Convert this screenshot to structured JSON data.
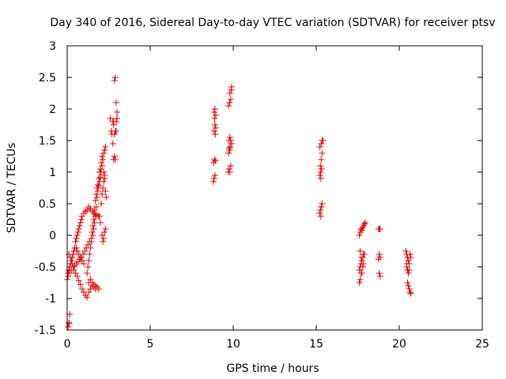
{
  "chart_data": {
    "type": "scatter",
    "title": "Day 340 of 2016, Sidereal Day-to-day VTEC variation (SDTVAR) for receiver ptsv",
    "xlabel": "GPS time / hours",
    "ylabel": "SDTVAR / TECUs",
    "xlim": [
      0,
      25
    ],
    "ylim": [
      -1.5,
      3
    ],
    "xticks": [
      0,
      5,
      10,
      15,
      20,
      25
    ],
    "xtick_labels": [
      "0",
      "5",
      "10",
      "15",
      "20",
      "25"
    ],
    "yticks": [
      -1.5,
      -1,
      -0.5,
      0,
      0.5,
      1,
      1.5,
      2,
      2.5,
      3
    ],
    "ytick_labels": [
      "-1.5",
      "-1",
      "-0.5",
      "0",
      "0.5",
      "1",
      "1.5",
      "2",
      "2.5",
      "3"
    ],
    "marker": "+",
    "marker_color": "#e00000",
    "grid": false,
    "legend": false,
    "series": [
      {
        "name": "SDTVAR",
        "points": [
          [
            0.05,
            -1.45
          ],
          [
            0.1,
            -1.38
          ],
          [
            0.15,
            -1.25
          ],
          [
            0.12,
            -1.4
          ],
          [
            0.0,
            -0.7
          ],
          [
            0.05,
            -0.6
          ],
          [
            0.1,
            -0.55
          ],
          [
            0.15,
            -0.5
          ],
          [
            0.2,
            -0.45
          ],
          [
            0.25,
            -0.4
          ],
          [
            0.3,
            -0.35
          ],
          [
            0.35,
            -0.3
          ],
          [
            0.4,
            -0.25
          ],
          [
            0.45,
            -0.2
          ],
          [
            0.5,
            -0.1
          ],
          [
            0.55,
            -0.05
          ],
          [
            0.6,
            0.0
          ],
          [
            0.65,
            0.05
          ],
          [
            0.7,
            0.1
          ],
          [
            0.75,
            0.15
          ],
          [
            0.8,
            0.2
          ],
          [
            0.85,
            0.25
          ],
          [
            0.9,
            0.3
          ],
          [
            1.0,
            0.35
          ],
          [
            1.1,
            0.38
          ],
          [
            1.2,
            0.4
          ],
          [
            1.3,
            0.45
          ],
          [
            1.4,
            0.42
          ],
          [
            1.5,
            0.38
          ],
          [
            1.6,
            0.35
          ],
          [
            1.7,
            0.33
          ],
          [
            1.8,
            0.32
          ],
          [
            1.9,
            0.3
          ],
          [
            0.1,
            -0.3
          ],
          [
            0.2,
            -0.35
          ],
          [
            0.3,
            -0.45
          ],
          [
            0.4,
            -0.55
          ],
          [
            0.5,
            -0.6
          ],
          [
            0.6,
            -0.65
          ],
          [
            0.7,
            -0.72
          ],
          [
            0.8,
            -0.78
          ],
          [
            0.9,
            -0.85
          ],
          [
            1.0,
            -0.9
          ],
          [
            1.1,
            -0.95
          ],
          [
            1.2,
            -0.98
          ],
          [
            1.3,
            -0.9
          ],
          [
            1.4,
            -0.85
          ],
          [
            1.5,
            -0.8
          ],
          [
            1.6,
            -0.82
          ],
          [
            1.7,
            -0.85
          ],
          [
            0.05,
            -0.65
          ],
          [
            0.15,
            -0.6
          ],
          [
            0.25,
            -0.55
          ],
          [
            0.35,
            -0.5
          ],
          [
            0.45,
            -0.48
          ],
          [
            0.55,
            -0.45
          ],
          [
            0.65,
            -0.42
          ],
          [
            0.75,
            -0.38
          ],
          [
            0.85,
            -0.35
          ],
          [
            0.95,
            -0.3
          ],
          [
            1.05,
            -0.25
          ],
          [
            1.15,
            -0.2
          ],
          [
            1.25,
            -0.15
          ],
          [
            1.35,
            -0.1
          ],
          [
            1.45,
            -0.05
          ],
          [
            1.55,
            0.0
          ],
          [
            1.6,
            0.1
          ],
          [
            1.65,
            0.2
          ],
          [
            1.7,
            0.3
          ],
          [
            1.75,
            0.45
          ],
          [
            1.8,
            0.6
          ],
          [
            1.85,
            0.7
          ],
          [
            1.9,
            0.78
          ],
          [
            1.95,
            0.85
          ],
          [
            2.0,
            0.92
          ],
          [
            2.05,
            1.0
          ],
          [
            2.1,
            1.1
          ],
          [
            2.15,
            1.2
          ],
          [
            2.2,
            1.3
          ],
          [
            2.25,
            1.35
          ],
          [
            2.3,
            1.4
          ],
          [
            1.2,
            -0.6
          ],
          [
            1.25,
            -0.5
          ],
          [
            1.3,
            -0.4
          ],
          [
            1.35,
            -0.3
          ],
          [
            1.4,
            -0.2
          ],
          [
            1.45,
            -0.1
          ],
          [
            1.5,
            0.05
          ],
          [
            1.55,
            0.15
          ],
          [
            1.6,
            0.25
          ],
          [
            1.65,
            0.4
          ],
          [
            1.7,
            0.55
          ],
          [
            1.75,
            0.65
          ],
          [
            1.8,
            0.75
          ],
          [
            1.85,
            0.8
          ],
          [
            1.9,
            0.9
          ],
          [
            1.95,
            1.0
          ],
          [
            2.0,
            1.05
          ],
          [
            2.05,
            1.15
          ],
          [
            2.1,
            1.25
          ],
          [
            2.2,
            1.0
          ],
          [
            2.25,
            0.9
          ],
          [
            2.3,
            0.7
          ],
          [
            2.35,
            0.6
          ],
          [
            1.3,
            -0.75
          ],
          [
            1.4,
            -0.7
          ],
          [
            1.5,
            -0.75
          ],
          [
            1.6,
            -0.78
          ],
          [
            1.7,
            -0.8
          ],
          [
            1.8,
            -0.82
          ],
          [
            1.9,
            -0.85
          ],
          [
            0.55,
            -0.2
          ],
          [
            0.6,
            -0.25
          ],
          [
            0.7,
            -0.3
          ],
          [
            0.8,
            -0.35
          ],
          [
            0.9,
            -0.4
          ],
          [
            1.0,
            -0.45
          ],
          [
            2.3,
            0.1
          ],
          [
            2.25,
            0.05
          ],
          [
            2.2,
            -0.05
          ],
          [
            2.15,
            -0.1
          ],
          [
            2.1,
            0.0
          ],
          [
            2.0,
            0.2
          ],
          [
            1.95,
            0.3
          ],
          [
            2.05,
            0.5
          ],
          [
            2.1,
            0.65
          ],
          [
            2.15,
            0.75
          ],
          [
            2.2,
            0.85
          ],
          [
            2.25,
            0.95
          ],
          [
            2.6,
            1.85
          ],
          [
            2.65,
            1.65
          ],
          [
            2.7,
            1.6
          ],
          [
            2.75,
            1.45
          ],
          [
            2.8,
            1.2
          ],
          [
            2.85,
            1.25
          ],
          [
            2.9,
            1.2
          ],
          [
            2.75,
            1.8
          ],
          [
            2.8,
            1.75
          ],
          [
            2.85,
            1.6
          ],
          [
            2.9,
            1.65
          ],
          [
            2.95,
            1.8
          ],
          [
            3.0,
            1.85
          ],
          [
            2.85,
            2.45
          ],
          [
            2.9,
            2.5
          ],
          [
            2.95,
            2.1
          ],
          [
            3.0,
            1.95
          ],
          [
            2.8,
            1.8
          ],
          [
            2.95,
            1.65
          ],
          [
            8.8,
            0.85
          ],
          [
            8.85,
            0.9
          ],
          [
            8.9,
            0.95
          ],
          [
            8.82,
            1.15
          ],
          [
            8.87,
            1.2
          ],
          [
            8.92,
            1.18
          ],
          [
            8.85,
            1.65
          ],
          [
            8.9,
            1.75
          ],
          [
            8.95,
            1.7
          ],
          [
            8.85,
            1.95
          ],
          [
            8.9,
            2.0
          ],
          [
            8.95,
            1.9
          ],
          [
            8.88,
            1.85
          ],
          [
            8.92,
            1.6
          ],
          [
            9.7,
            1.0
          ],
          [
            9.75,
            1.05
          ],
          [
            9.8,
            1.0
          ],
          [
            9.85,
            1.1
          ],
          [
            9.72,
            1.3
          ],
          [
            9.78,
            1.35
          ],
          [
            9.82,
            1.4
          ],
          [
            9.9,
            1.45
          ],
          [
            9.75,
            1.5
          ],
          [
            9.8,
            1.55
          ],
          [
            9.85,
            1.5
          ],
          [
            9.72,
            2.05
          ],
          [
            9.78,
            2.1
          ],
          [
            9.85,
            2.15
          ],
          [
            9.8,
            2.25
          ],
          [
            9.88,
            2.3
          ],
          [
            9.9,
            2.35
          ],
          [
            9.75,
            1.38
          ],
          [
            15.2,
            0.35
          ],
          [
            15.25,
            0.4
          ],
          [
            15.3,
            0.45
          ],
          [
            15.35,
            0.5
          ],
          [
            15.28,
            0.3
          ],
          [
            15.22,
            0.95
          ],
          [
            15.27,
            1.0
          ],
          [
            15.32,
            1.05
          ],
          [
            15.25,
            1.1
          ],
          [
            15.3,
            1.2
          ],
          [
            15.35,
            1.3
          ],
          [
            15.22,
            1.4
          ],
          [
            15.3,
            1.45
          ],
          [
            15.35,
            1.5
          ],
          [
            15.4,
            1.5
          ],
          [
            15.28,
            0.9
          ],
          [
            17.6,
            -0.75
          ],
          [
            17.65,
            -0.7
          ],
          [
            17.7,
            -0.6
          ],
          [
            17.65,
            -0.5
          ],
          [
            17.7,
            -0.45
          ],
          [
            17.75,
            -0.4
          ],
          [
            17.8,
            -0.35
          ],
          [
            17.85,
            -0.3
          ],
          [
            17.6,
            -0.55
          ],
          [
            17.75,
            -0.6
          ],
          [
            17.8,
            -0.5
          ],
          [
            17.85,
            -0.45
          ],
          [
            17.9,
            -0.3
          ],
          [
            17.65,
            -0.25
          ],
          [
            17.6,
            0.0
          ],
          [
            17.65,
            0.05
          ],
          [
            17.7,
            0.1
          ],
          [
            17.75,
            0.08
          ],
          [
            17.8,
            0.12
          ],
          [
            17.85,
            0.15
          ],
          [
            17.9,
            0.18
          ],
          [
            17.95,
            0.2
          ],
          [
            17.7,
            -0.35
          ],
          [
            18.75,
            0.1
          ],
          [
            18.8,
            0.1
          ],
          [
            18.85,
            0.1
          ],
          [
            18.8,
            -0.3
          ],
          [
            18.85,
            -0.35
          ],
          [
            18.75,
            -0.38
          ],
          [
            18.8,
            -0.6
          ],
          [
            18.85,
            -0.65
          ],
          [
            20.4,
            -0.25
          ],
          [
            20.45,
            -0.3
          ],
          [
            20.5,
            -0.35
          ],
          [
            20.55,
            -0.4
          ],
          [
            20.6,
            -0.45
          ],
          [
            20.65,
            -0.3
          ],
          [
            20.7,
            -0.35
          ],
          [
            20.45,
            -0.5
          ],
          [
            20.5,
            -0.55
          ],
          [
            20.55,
            -0.6
          ],
          [
            20.5,
            -0.75
          ],
          [
            20.55,
            -0.8
          ],
          [
            20.6,
            -0.85
          ],
          [
            20.65,
            -0.9
          ],
          [
            20.7,
            -0.92
          ],
          [
            20.45,
            -0.45
          ],
          [
            20.6,
            -0.55
          ]
        ]
      }
    ]
  }
}
